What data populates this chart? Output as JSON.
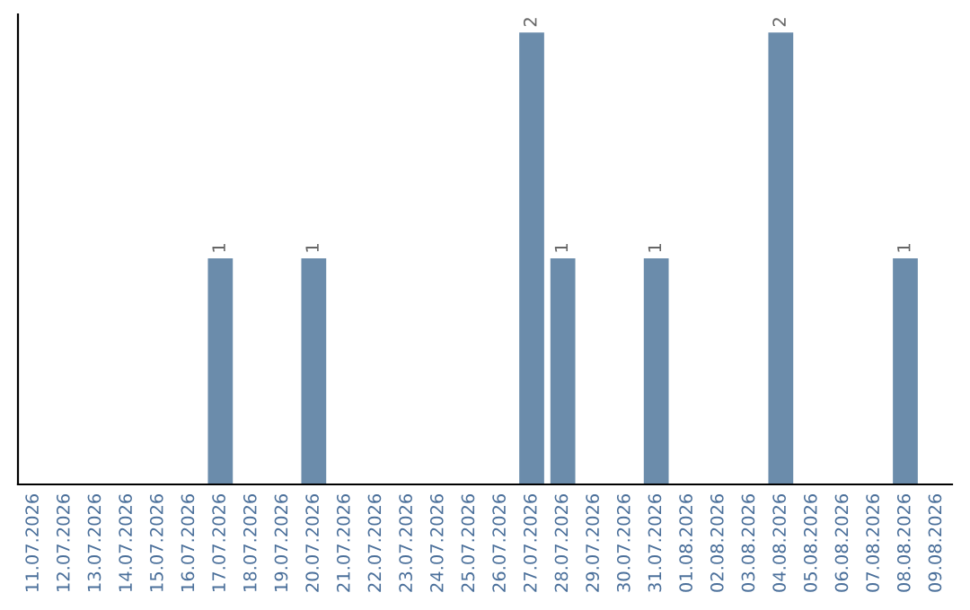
{
  "chart_data": {
    "type": "bar",
    "categories": [
      "11.07.2026",
      "12.07.2026",
      "13.07.2026",
      "14.07.2026",
      "15.07.2026",
      "16.07.2026",
      "17.07.2026",
      "18.07.2026",
      "19.07.2026",
      "20.07.2026",
      "21.07.2026",
      "22.07.2026",
      "23.07.2026",
      "24.07.2026",
      "25.07.2026",
      "26.07.2026",
      "27.07.2026",
      "28.07.2026",
      "29.07.2026",
      "30.07.2026",
      "31.07.2026",
      "01.08.2026",
      "02.08.2026",
      "03.08.2026",
      "04.08.2026",
      "05.08.2026",
      "06.08.2026",
      "07.08.2026",
      "08.08.2026",
      "09.08.2026"
    ],
    "values": [
      0,
      0,
      0,
      0,
      0,
      0,
      1,
      0,
      0,
      1,
      0,
      0,
      0,
      0,
      0,
      0,
      2,
      1,
      0,
      0,
      1,
      0,
      0,
      0,
      2,
      0,
      0,
      0,
      1,
      0
    ],
    "value_labels": [
      null,
      null,
      null,
      null,
      null,
      null,
      "1",
      null,
      null,
      "1",
      null,
      null,
      null,
      null,
      null,
      null,
      "2",
      "1",
      null,
      null,
      "1",
      null,
      null,
      null,
      "2",
      null,
      null,
      null,
      "1",
      null
    ],
    "color": "#6b8cab",
    "ylim": [
      0,
      2.08
    ],
    "tick_labels": "x",
    "grid": false,
    "legend": false
  }
}
